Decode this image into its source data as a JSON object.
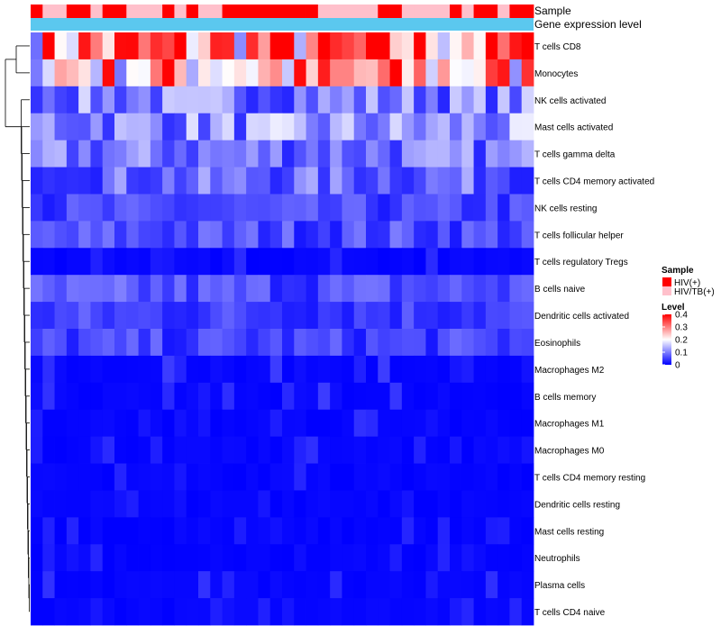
{
  "chart_data": {
    "type": "heatmap",
    "annotation_tracks": [
      {
        "name": "Sample"
      },
      {
        "name": "Gene expression level"
      }
    ],
    "rows": [
      "T cells CD8",
      "Monocytes",
      "NK cells activated",
      "Mast cells activated",
      "T cells gamma delta",
      "T cells CD4 memory activated",
      "NK cells resting",
      "T cells follicular helper",
      "T cells regulatory  Tregs",
      "B cells naive",
      "Dendritic cells activated",
      "Eosinophils",
      "Macrophages M2",
      "B cells memory",
      "Macrophages M1",
      "Macrophages M0",
      "T cells CD4 memory resting",
      "Dendritic cells resting",
      "Mast cells resting",
      "Neutrophils",
      "Plasma cells",
      "T cells CD4 naive"
    ],
    "n_samples": 42,
    "sample_groups": [
      0,
      1,
      1,
      0,
      0,
      1,
      0,
      0,
      1,
      1,
      1,
      0,
      1,
      0,
      1,
      1,
      0,
      0,
      0,
      0,
      0,
      0,
      0,
      0,
      1,
      1,
      1,
      1,
      1,
      0,
      0,
      1,
      1,
      1,
      1,
      0,
      1,
      0,
      0,
      1,
      0,
      0
    ],
    "row_means": [
      0.29,
      0.25,
      0.1,
      0.11,
      0.09,
      0.08,
      0.05,
      0.06,
      0.02,
      0.06,
      0.05,
      0.05,
      0.03,
      0.03,
      0.02,
      0.02,
      0.01,
      0.01,
      0.01,
      0.01,
      0.02,
      0.01
    ],
    "legend": {
      "sample_title": "Sample",
      "sample_entries": [
        {
          "label": "HIV(+)",
          "color": "#ff0000"
        },
        {
          "label": "HIV/TB(+)",
          "color": "#ffc0cb"
        }
      ],
      "level_title": "Level",
      "level_ticks": [
        {
          "label": "0.4",
          "value": 0.4
        },
        {
          "label": "0.3",
          "value": 0.3
        },
        {
          "label": "0.2",
          "value": 0.2
        },
        {
          "label": "0.1",
          "value": 0.1
        },
        {
          "label": "0",
          "value": 0
        }
      ]
    },
    "color_scale": {
      "low": "#0000ff",
      "mid": "#ffffff",
      "high": "#ff0000",
      "domain": [
        0,
        0.2,
        0.4
      ]
    },
    "expression_track_color": "#5bc8ef"
  }
}
